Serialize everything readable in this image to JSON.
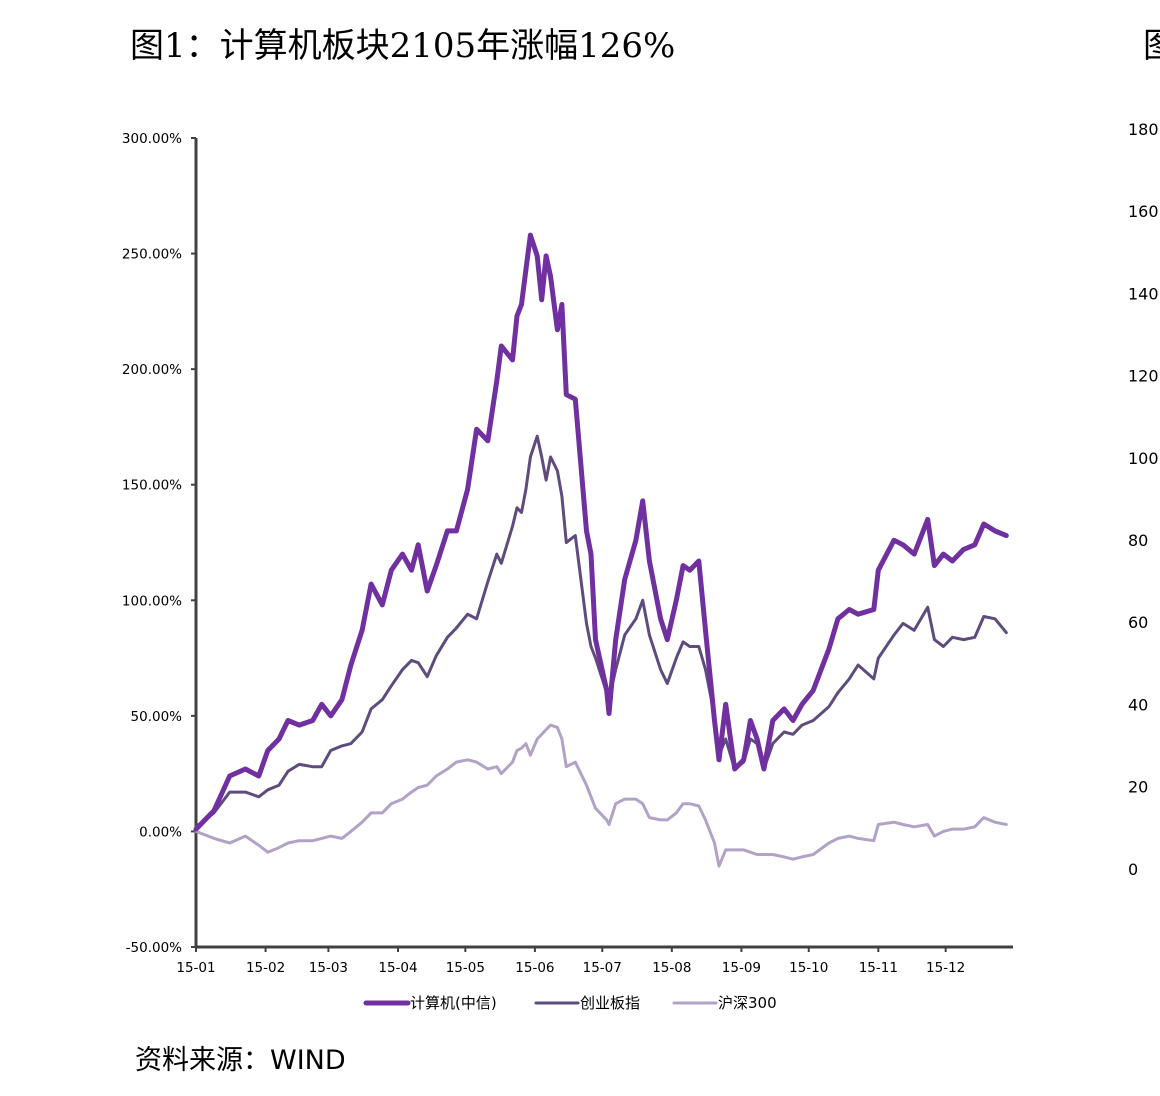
{
  "title": "图1：计算机板块2105年涨幅126%",
  "right_partial": {
    "title_fragment": "图",
    "y_ticks": [
      "180",
      "160",
      "140",
      "120",
      "100",
      "80",
      "60",
      "40",
      "20",
      "0"
    ]
  },
  "source": "资料来源：WIND",
  "chart_data": {
    "type": "line",
    "title": "图1：计算机板块2105年涨幅126%",
    "xlabel": "",
    "ylabel": "",
    "ylim": [
      -50,
      300
    ],
    "y_unit": "%",
    "y_ticks": [
      "-50.00%",
      "0.00%",
      "50.00%",
      "100.00%",
      "150.00%",
      "200.00%",
      "250.00%",
      "300.00%"
    ],
    "x_ticks": [
      "15-01",
      "15-02",
      "15-03",
      "15-04",
      "15-05",
      "15-06",
      "15-07",
      "15-08",
      "15-09",
      "15-10",
      "15-11",
      "15-12"
    ],
    "grid": false,
    "legend": "bottom",
    "x": [
      "2015-01-01",
      "2015-01-09",
      "2015-01-16",
      "2015-01-23",
      "2015-01-29",
      "2015-02-02",
      "2015-02-07",
      "2015-02-11",
      "2015-02-16",
      "2015-02-22",
      "2015-02-26",
      "2015-03-02",
      "2015-03-07",
      "2015-03-11",
      "2015-03-16",
      "2015-03-20",
      "2015-03-25",
      "2015-03-29",
      "2015-04-03",
      "2015-04-07",
      "2015-04-10",
      "2015-04-14",
      "2015-04-18",
      "2015-04-23",
      "2015-04-27",
      "2015-05-02",
      "2015-05-06",
      "2015-05-11",
      "2015-05-15",
      "2015-05-17",
      "2015-05-22",
      "2015-05-24",
      "2015-05-26",
      "2015-05-28",
      "2015-05-30",
      "2015-06-02",
      "2015-06-04",
      "2015-06-06",
      "2015-06-08",
      "2015-06-11",
      "2015-06-13",
      "2015-06-15",
      "2015-06-19",
      "2015-06-24",
      "2015-06-26",
      "2015-06-28",
      "2015-07-03",
      "2015-07-04",
      "2015-07-07",
      "2015-07-11",
      "2015-07-16",
      "2015-07-19",
      "2015-07-22",
      "2015-07-27",
      "2015-07-30",
      "2015-08-03",
      "2015-08-06",
      "2015-08-09",
      "2015-08-13",
      "2015-08-16",
      "2015-08-20",
      "2015-08-22",
      "2015-08-25",
      "2015-08-29",
      "2015-09-02",
      "2015-09-05",
      "2015-09-08",
      "2015-09-11",
      "2015-09-15",
      "2015-09-20",
      "2015-09-24",
      "2015-09-28",
      "2015-10-03",
      "2015-10-10",
      "2015-10-14",
      "2015-10-19",
      "2015-10-23",
      "2015-10-30",
      "2015-11-01",
      "2015-11-08",
      "2015-11-12",
      "2015-11-17",
      "2015-11-23",
      "2015-11-26",
      "2015-11-30",
      "2015-12-04",
      "2015-12-09",
      "2015-12-14",
      "2015-12-18",
      "2015-12-23",
      "2015-12-28"
    ],
    "series": [
      {
        "name": "计算机(中信)",
        "color": "#7030a0",
        "width": 5,
        "values": [
          1,
          9,
          24,
          27,
          24,
          35,
          40,
          48,
          46,
          48,
          55,
          50,
          57,
          72,
          87,
          107,
          98,
          113,
          120,
          113,
          124,
          104,
          115,
          130,
          130,
          148,
          174,
          169,
          195,
          210,
          204,
          223,
          228,
          243,
          258,
          249,
          230,
          249,
          240,
          217,
          228,
          189,
          187,
          130,
          120,
          83,
          61,
          51,
          83,
          109,
          126,
          143,
          117,
          92,
          83,
          100,
          115,
          113,
          117,
          87,
          48,
          31,
          55,
          27,
          31,
          48,
          40,
          27,
          48,
          53,
          48,
          55,
          61,
          79,
          92,
          96,
          94,
          96,
          113,
          126,
          124,
          120,
          135,
          115,
          120,
          117,
          122,
          124,
          133,
          130,
          128
        ]
      },
      {
        "name": "创业板指",
        "color": "#5f4b7e",
        "width": 3,
        "values": [
          2,
          8,
          17,
          17,
          15,
          18,
          20,
          26,
          29,
          28,
          28,
          35,
          37,
          38,
          43,
          53,
          57,
          63,
          70,
          74,
          73,
          67,
          76,
          84,
          88,
          94,
          92,
          108,
          120,
          116,
          132,
          140,
          138,
          148,
          162,
          171,
          162,
          152,
          162,
          156,
          145,
          125,
          128,
          90,
          80,
          75,
          60,
          57,
          70,
          85,
          92,
          100,
          85,
          70,
          64,
          75,
          82,
          80,
          80,
          70,
          50,
          33,
          40,
          27,
          30,
          40,
          38,
          27,
          38,
          43,
          42,
          46,
          48,
          54,
          60,
          66,
          72,
          66,
          75,
          85,
          90,
          87,
          97,
          83,
          80,
          84,
          83,
          84,
          93,
          92,
          86
        ]
      },
      {
        "name": "沪深300",
        "color": "#b3a2c7",
        "width": 3,
        "values": [
          0,
          -3,
          -5,
          -2,
          -6,
          -9,
          -7,
          -5,
          -4,
          -4,
          -3,
          -2,
          -3,
          0,
          4,
          8,
          8,
          12,
          14,
          17,
          19,
          20,
          24,
          27,
          30,
          31,
          30,
          27,
          28,
          25,
          30,
          35,
          36,
          38,
          33,
          40,
          42,
          44,
          46,
          45,
          40,
          28,
          30,
          20,
          15,
          10,
          5,
          3,
          12,
          14,
          14,
          12,
          6,
          5,
          5,
          8,
          12,
          12,
          11,
          5,
          -5,
          -15,
          -8,
          -8,
          -8,
          -9,
          -10,
          -10,
          -10,
          -11,
          -12,
          -11,
          -10,
          -5,
          -3,
          -2,
          -3,
          -4,
          3,
          4,
          3,
          2,
          3,
          -2,
          0,
          1,
          1,
          2,
          6,
          4,
          3
        ]
      }
    ]
  }
}
